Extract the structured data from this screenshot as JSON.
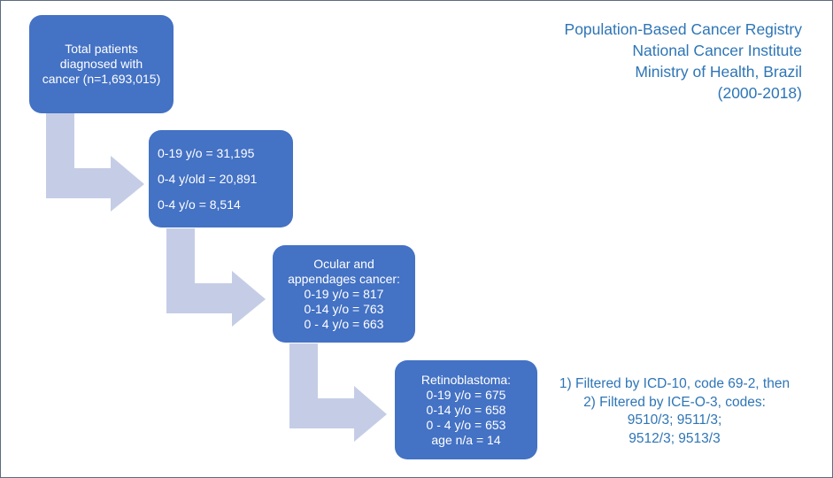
{
  "registry": {
    "lines": [
      "Population-Based Cancer Registry",
      "National Cancer Institute",
      "Ministry of Health, Brazil",
      "(2000-2018)"
    ]
  },
  "boxes": {
    "total": {
      "lines": [
        "Total patients",
        "diagnosed with",
        "cancer (n=1,693,015)"
      ]
    },
    "age": {
      "lines": [
        "0-19 y/o = 31,195",
        "0-4 y/old = 20,891",
        "0-4 y/o = 8,514"
      ]
    },
    "ocular": {
      "lines": [
        "Ocular and",
        "appendages cancer:",
        "0-19 y/o = 817",
        "0-14 y/o = 763",
        "0 - 4 y/o = 663"
      ]
    },
    "retino": {
      "lines": [
        "Retinoblastoma:",
        "0-19 y/o = 675",
        "0-14 y/o = 658",
        "0 - 4 y/o = 653",
        "age n/a = 14"
      ]
    }
  },
  "filter": {
    "lines": [
      "1) Filtered by ICD-10, code 69-2, then",
      "2) Filtered by ICE-O-3, codes:",
      "9510/3; 9511/3;",
      "9512/3; 9513/3"
    ]
  },
  "colors": {
    "box_fill": "#4472c4",
    "arrow_fill": "#c5cde6",
    "text_accent": "#2e75b6",
    "border": "#5b6b7f"
  }
}
